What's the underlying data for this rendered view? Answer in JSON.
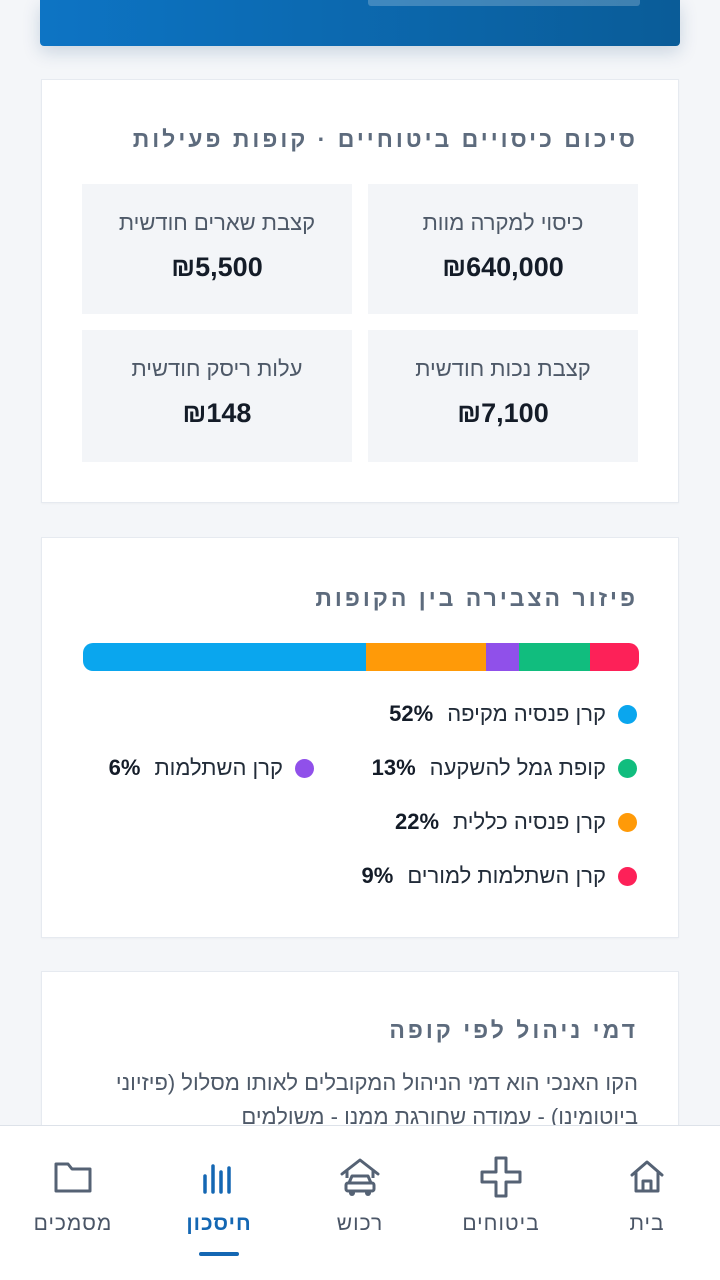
{
  "summary": {
    "title": "סיכום כיסויים ביטוחיים · קופות פעילות",
    "tiles": [
      {
        "label": "כיסוי למקרה מוות",
        "value": "₪640,000"
      },
      {
        "label": "קצבת שארים חודשית",
        "value": "₪5,500"
      },
      {
        "label": "קצבת נכות חודשית",
        "value": "₪7,100"
      },
      {
        "label": "עלות ריסק חודשית",
        "value": "₪148"
      }
    ]
  },
  "distribution": {
    "title": "פיזור הצבירה בין הקופות",
    "funds": [
      {
        "name": "קרן פנסיה מקיפה",
        "pct_label": "52%",
        "share": 52,
        "color": "#0aa6ee"
      },
      {
        "name": "קופת גמל להשקעה",
        "pct_label": "13%",
        "share": 13,
        "color": "#11bd7e"
      },
      {
        "name": "קרן השתלמות",
        "pct_label": "6%",
        "share": 6,
        "color": "#9050ea"
      },
      {
        "name": "קרן פנסיה כללית",
        "pct_label": "22%",
        "share": 22,
        "color": "#ff9a08"
      },
      {
        "name": "קרן השתלמות למורים",
        "pct_label": "9%",
        "share": 9,
        "color": "#fd2158"
      }
    ]
  },
  "fees": {
    "title": "דמי ניהול לפי קופה",
    "body": "הקו האנכי הוא דמי הניהול המקובלים לאותו מסלול (פיזיוני ביוטומינו) - עמודה שחורגת ממנו - משולמים"
  },
  "nav": {
    "items": [
      {
        "label": "בית",
        "icon": "home-icon"
      },
      {
        "label": "ביטוחים",
        "icon": "plus-icon"
      },
      {
        "label": "רכוש",
        "icon": "house-car-icon"
      },
      {
        "label": "חיסכון",
        "icon": "bar-chart-icon",
        "active": true
      },
      {
        "label": "מסמכים",
        "icon": "folder-icon"
      }
    ]
  }
}
